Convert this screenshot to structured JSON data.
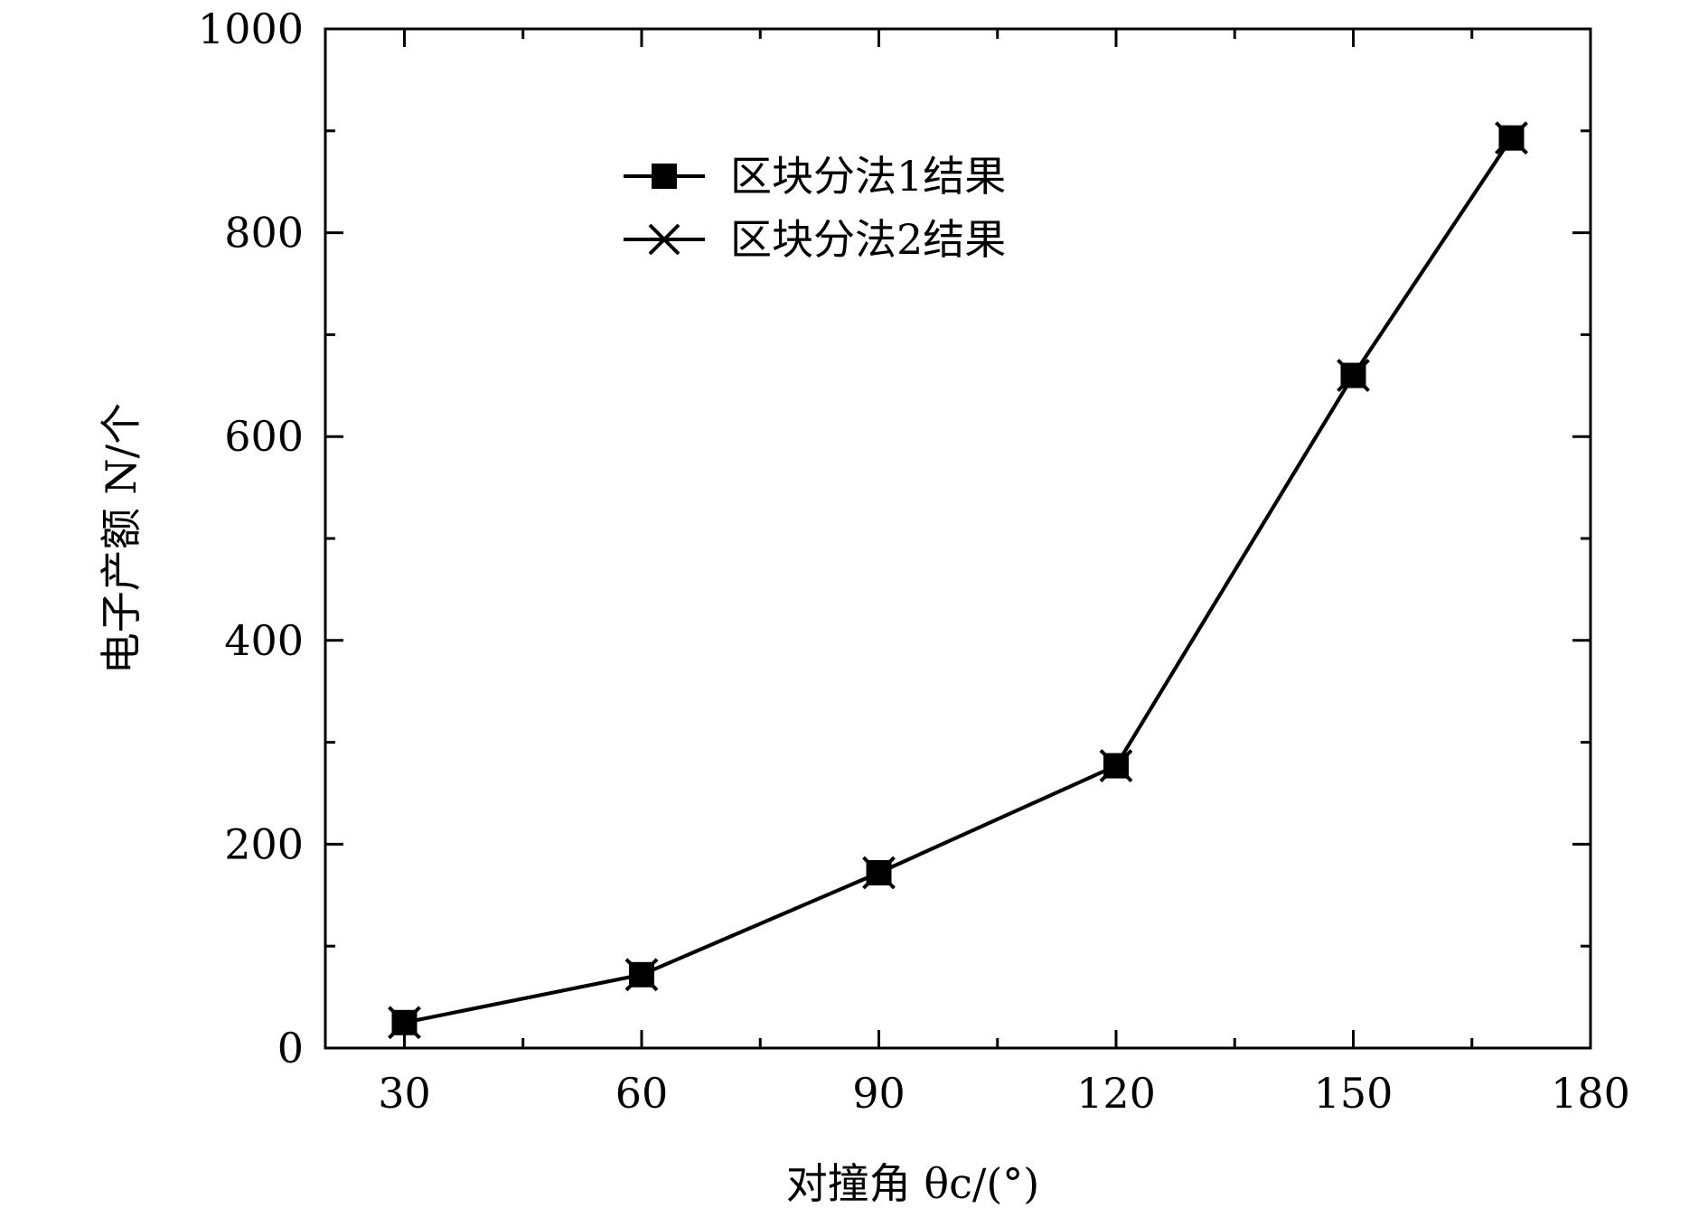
{
  "chart_data": {
    "type": "line",
    "title": "",
    "xlabel": "对撞角 θc/(°)",
    "ylabel": "电子产额 N/个",
    "xlim": [
      20,
      180
    ],
    "ylim": [
      0,
      1000
    ],
    "x_ticks": [
      30,
      60,
      90,
      120,
      150,
      180
    ],
    "y_ticks": [
      0,
      200,
      400,
      600,
      800,
      1000
    ],
    "grid": false,
    "legend_position": "top-center",
    "x": [
      30,
      60,
      90,
      120,
      150,
      170
    ],
    "series": [
      {
        "name": "区块分法1结果",
        "marker": "square",
        "color": "#000000",
        "values": [
          25,
          72,
          172,
          277,
          660,
          893
        ]
      },
      {
        "name": "区块分法2结果",
        "marker": "cross",
        "color": "#000000",
        "values": [
          25,
          72,
          172,
          277,
          660,
          893
        ]
      }
    ]
  }
}
